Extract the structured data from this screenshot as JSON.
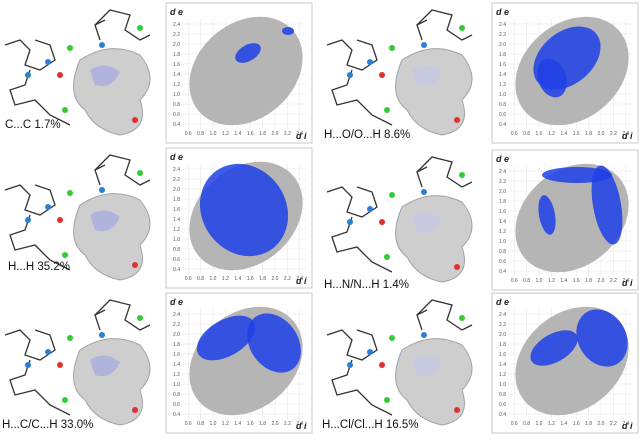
{
  "plot": {
    "y_axis_label": "d e",
    "x_axis_label": "d i",
    "x_ticks": [
      "0.6",
      "0.8",
      "1.0",
      "1.2",
      "1.4",
      "1.6",
      "1.8",
      "2.0",
      "2.2",
      "2.4"
    ],
    "y_ticks": [
      "0.4",
      "0.6",
      "0.8",
      "1.0",
      "1.2",
      "1.4",
      "1.6",
      "1.8",
      "2.0",
      "2.2",
      "2.4"
    ]
  },
  "panels": [
    {
      "label": "C...C 1.7%"
    },
    {
      "label": "H...O/O...H 8.6%"
    },
    {
      "label": "H...H 35.2%"
    },
    {
      "label": "H...N/N...H 1.4%"
    },
    {
      "label": "H...C/C...H 33.0%"
    },
    {
      "label": "H...Cl/Cl...H 16.5%"
    }
  ]
}
